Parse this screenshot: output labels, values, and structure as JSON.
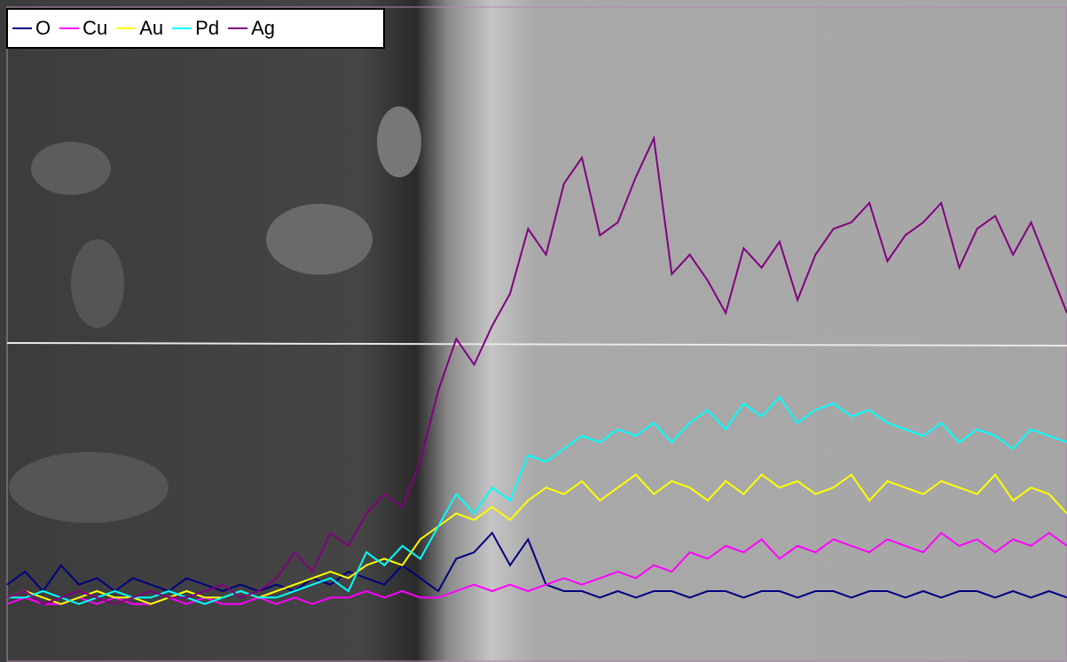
{
  "chart_data": {
    "type": "line",
    "ylim": [
      0,
      100
    ],
    "legend": "upper left",
    "series": [
      {
        "name": "O",
        "color": "#000080",
        "values": [
          11,
          13,
          10,
          14,
          11,
          12,
          10,
          12,
          11,
          10,
          12,
          11,
          10,
          11,
          10,
          11,
          10,
          12,
          11,
          13,
          12,
          11,
          14,
          12,
          10,
          15,
          16,
          19,
          14,
          18,
          11,
          10,
          10,
          9,
          10,
          9,
          10,
          10,
          9,
          10,
          10,
          9,
          10,
          10,
          9,
          10,
          10,
          9,
          10,
          10,
          9,
          10,
          9,
          10,
          10,
          9,
          10,
          9,
          10,
          9
        ]
      },
      {
        "name": "Cu",
        "color": "#ff00ff",
        "values": [
          8,
          9,
          8,
          8,
          9,
          8,
          9,
          8,
          8,
          9,
          8,
          9,
          8,
          8,
          9,
          8,
          9,
          8,
          9,
          9,
          10,
          9,
          10,
          9,
          9,
          10,
          11,
          10,
          11,
          10,
          11,
          12,
          11,
          12,
          13,
          12,
          14,
          13,
          16,
          15,
          17,
          16,
          18,
          15,
          17,
          16,
          18,
          17,
          16,
          18,
          17,
          16,
          19,
          17,
          18,
          16,
          18,
          17,
          19,
          17
        ]
      },
      {
        "name": "Au",
        "color": "#ffff00",
        "values": [
          9,
          10,
          9,
          8,
          9,
          10,
          9,
          9,
          8,
          9,
          10,
          9,
          9,
          10,
          9,
          10,
          11,
          12,
          13,
          12,
          14,
          15,
          14,
          18,
          20,
          22,
          21,
          23,
          21,
          24,
          26,
          25,
          27,
          24,
          26,
          28,
          25,
          27,
          26,
          24,
          27,
          25,
          28,
          26,
          27,
          25,
          26,
          28,
          24,
          27,
          26,
          25,
          27,
          26,
          25,
          28,
          24,
          26,
          25,
          22
        ]
      },
      {
        "name": "Pd",
        "color": "#00ffff",
        "values": [
          9,
          9,
          10,
          9,
          8,
          9,
          10,
          9,
          9,
          10,
          9,
          8,
          9,
          10,
          9,
          9,
          10,
          11,
          12,
          10,
          16,
          14,
          17,
          15,
          20,
          25,
          22,
          26,
          24,
          31,
          30,
          32,
          34,
          33,
          35,
          34,
          36,
          33,
          36,
          38,
          35,
          39,
          37,
          40,
          36,
          38,
          39,
          37,
          38,
          36,
          35,
          34,
          36,
          33,
          35,
          34,
          32,
          35,
          34,
          33
        ]
      },
      {
        "name": "Ag",
        "color": "#800080",
        "values": [
          9,
          10,
          8,
          9,
          10,
          9,
          8,
          9,
          10,
          9,
          9,
          10,
          11,
          9,
          10,
          12,
          16,
          13,
          19,
          17,
          22,
          25,
          23,
          30,
          41,
          49,
          45,
          51,
          56,
          66,
          62,
          73,
          77,
          65,
          67,
          74,
          80,
          59,
          62,
          58,
          53,
          63,
          60,
          64,
          55,
          62,
          66,
          67,
          70,
          61,
          65,
          67,
          70,
          60,
          66,
          68,
          62,
          67,
          60,
          53
        ]
      }
    ]
  }
}
